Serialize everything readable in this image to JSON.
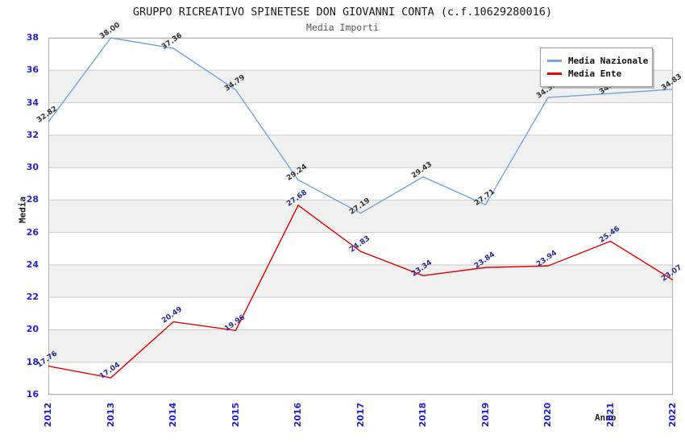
{
  "title": "GRUPPO RICREATIVO SPINETESE DON GIOVANNI CONTA (c.f.10629280016)",
  "subtitle": "Media Importi",
  "colors": {
    "grid_line": "#cccccc",
    "plot_border": "#b3b3b3",
    "band_gray": "#f0f0f0",
    "band_white": "#ffffff",
    "tick_label_blue": "#2323cc",
    "national_line": "#74a5da",
    "entity_line": "#e60000",
    "national_point_label": "#333333",
    "entity_point_label": "#2a2a9a"
  },
  "legend": {
    "position": "top-right",
    "items": [
      {
        "label": "Media Nazionale",
        "color": "#74a5da"
      },
      {
        "label": "Media Ente",
        "color": "#e60000"
      }
    ]
  },
  "chart_data": {
    "type": "line",
    "title": "GRUPPO RICREATIVO SPINETESE DON GIOVANNI CONTA (c.f.10629280016)",
    "subtitle": "Media Importi",
    "xlabel": "Anno",
    "ylabel": "Media",
    "x": [
      "2012",
      "2013",
      "2014",
      "2015",
      "2016",
      "2017",
      "2018",
      "2019",
      "2020",
      "2021",
      "2022"
    ],
    "series": [
      {
        "name": "Media Nazionale",
        "color": "#74a5da",
        "label_color": "#333333",
        "values": [
          32.82,
          38.0,
          37.36,
          34.79,
          29.24,
          27.19,
          29.43,
          27.71,
          34.32,
          34.57,
          34.83
        ]
      },
      {
        "name": "Media Ente",
        "color": "#e60000",
        "label_color": "#2a2a9a",
        "values": [
          17.76,
          17.04,
          20.49,
          19.96,
          27.68,
          24.83,
          23.34,
          23.84,
          23.94,
          25.46,
          23.07
        ]
      }
    ],
    "ylim": [
      16,
      38
    ],
    "ytick_step": 2,
    "grid": true,
    "alternating_bands": true,
    "legend_position": "top-right"
  }
}
